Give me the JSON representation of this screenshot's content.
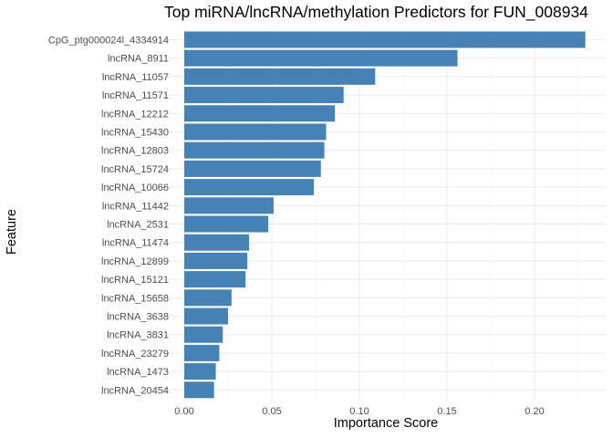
{
  "chart_data": {
    "type": "bar",
    "orientation": "horizontal",
    "title": "Top miRNA/lncRNA/methylation Predictors for FUN_008934",
    "xlabel": "Importance Score",
    "ylabel": "Feature",
    "xlim": [
      0,
      0.234
    ],
    "xticks": [
      0.0,
      0.05,
      0.1,
      0.15,
      0.2
    ],
    "xtick_labels": [
      "0.00",
      "0.05",
      "0.10",
      "0.15",
      "0.20"
    ],
    "grid": true,
    "bar_color": "#4682b4",
    "categories": [
      "CpG_ptg000024l_4334914",
      "lncRNA_8911",
      "lncRNA_11057",
      "lncRNA_11571",
      "lncRNA_12212",
      "lncRNA_15430",
      "lncRNA_12803",
      "lncRNA_15724",
      "lncRNA_10066",
      "lncRNA_11442",
      "lncRNA_2531",
      "lncRNA_11474",
      "lncRNA_12899",
      "lncRNA_15121",
      "lncRNA_15658",
      "lncRNA_3638",
      "lncRNA_3831",
      "lncRNA_23279",
      "lncRNA_1473",
      "lncRNA_20454"
    ],
    "values": [
      0.229,
      0.156,
      0.109,
      0.091,
      0.086,
      0.081,
      0.08,
      0.078,
      0.074,
      0.051,
      0.048,
      0.037,
      0.036,
      0.035,
      0.027,
      0.025,
      0.022,
      0.02,
      0.018,
      0.017
    ]
  }
}
